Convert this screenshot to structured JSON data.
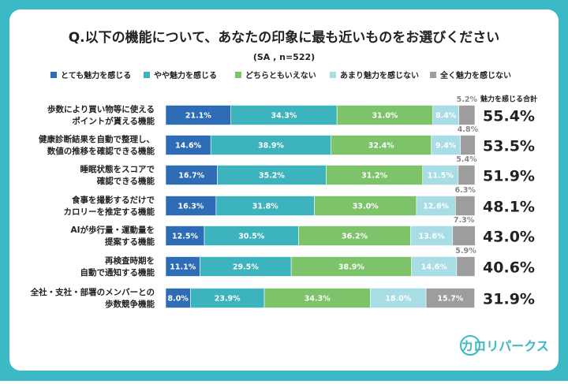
{
  "chart_data": {
    "type": "stacked-bar-100",
    "title": "Q.以下の機能について、あなたの印象に最も近いものをお選びください",
    "subtitle": "(SA , n=522)",
    "categories": [
      [
        "歩数により買い物等に使える",
        "ポイントが貰える機能"
      ],
      [
        "健康診断結果を自動で整理し、",
        "数値の推移を確認できる機能"
      ],
      [
        "睡眠状態をスコアで",
        "確認できる機能"
      ],
      [
        "食事を撮影するだけで",
        "カロリーを推定する機能"
      ],
      [
        "AIが歩行量・運動量を",
        "提案する機能"
      ],
      [
        "再検査時期を",
        "自動で通知する機能"
      ],
      [
        "全社・支社・部署のメンバーとの",
        "歩数競争機能"
      ]
    ],
    "xlim": [
      0,
      100
    ],
    "series": [
      {
        "name": "とても魅力を感じる",
        "color": "#2e6cb5",
        "values": [
          21.1,
          14.6,
          16.7,
          16.3,
          12.5,
          11.1,
          8.0
        ],
        "value_labels": [
          "21.1%",
          "14.6%",
          "16.7%",
          "16.3%",
          "12.5%",
          "11.1%",
          "8.0%"
        ]
      },
      {
        "name": "やや魅力を感じる",
        "color": "#3db3bd",
        "values": [
          34.3,
          38.9,
          35.2,
          31.8,
          30.5,
          29.5,
          23.9
        ],
        "value_labels": [
          "34.3%",
          "38.9%",
          "35.2%",
          "31.8%",
          "30.5%",
          "29.5%",
          "23.9%"
        ]
      },
      {
        "name": "どちらともいえない",
        "color": "#7cc36a",
        "values": [
          31.0,
          32.4,
          31.2,
          33.0,
          36.2,
          38.9,
          34.3
        ],
        "value_labels": [
          "31.0%",
          "32.4%",
          "31.2%",
          "33.0%",
          "36.2%",
          "38.9%",
          "34.3%"
        ]
      },
      {
        "name": "あまり魅力を感じない",
        "color": "#a9dde5",
        "values": [
          8.4,
          9.4,
          11.5,
          12.6,
          13.6,
          14.6,
          18.0
        ],
        "value_labels": [
          "8.4%",
          "9.4%",
          "11.5%",
          "12.6%",
          "13.6%",
          "14.6%",
          "18.0%"
        ]
      },
      {
        "name": "全く魅力を感じない",
        "color": "#9d9d9d",
        "values": [
          5.2,
          4.8,
          5.4,
          6.3,
          7.3,
          5.9,
          15.7
        ],
        "value_labels": [
          "5.2%",
          "4.8%",
          "5.4%",
          "6.3%",
          "7.3%",
          "5.9%",
          "15.7%"
        ]
      }
    ],
    "totals": {
      "name": "魅力を感じる合計",
      "values": [
        55.4,
        53.5,
        51.9,
        48.1,
        43.0,
        40.6,
        31.9
      ],
      "value_labels": [
        "55.4%",
        "53.5%",
        "51.9%",
        "48.1%",
        "43.0%",
        "40.6%",
        "31.9%"
      ]
    }
  },
  "logo": "カロリパークス"
}
